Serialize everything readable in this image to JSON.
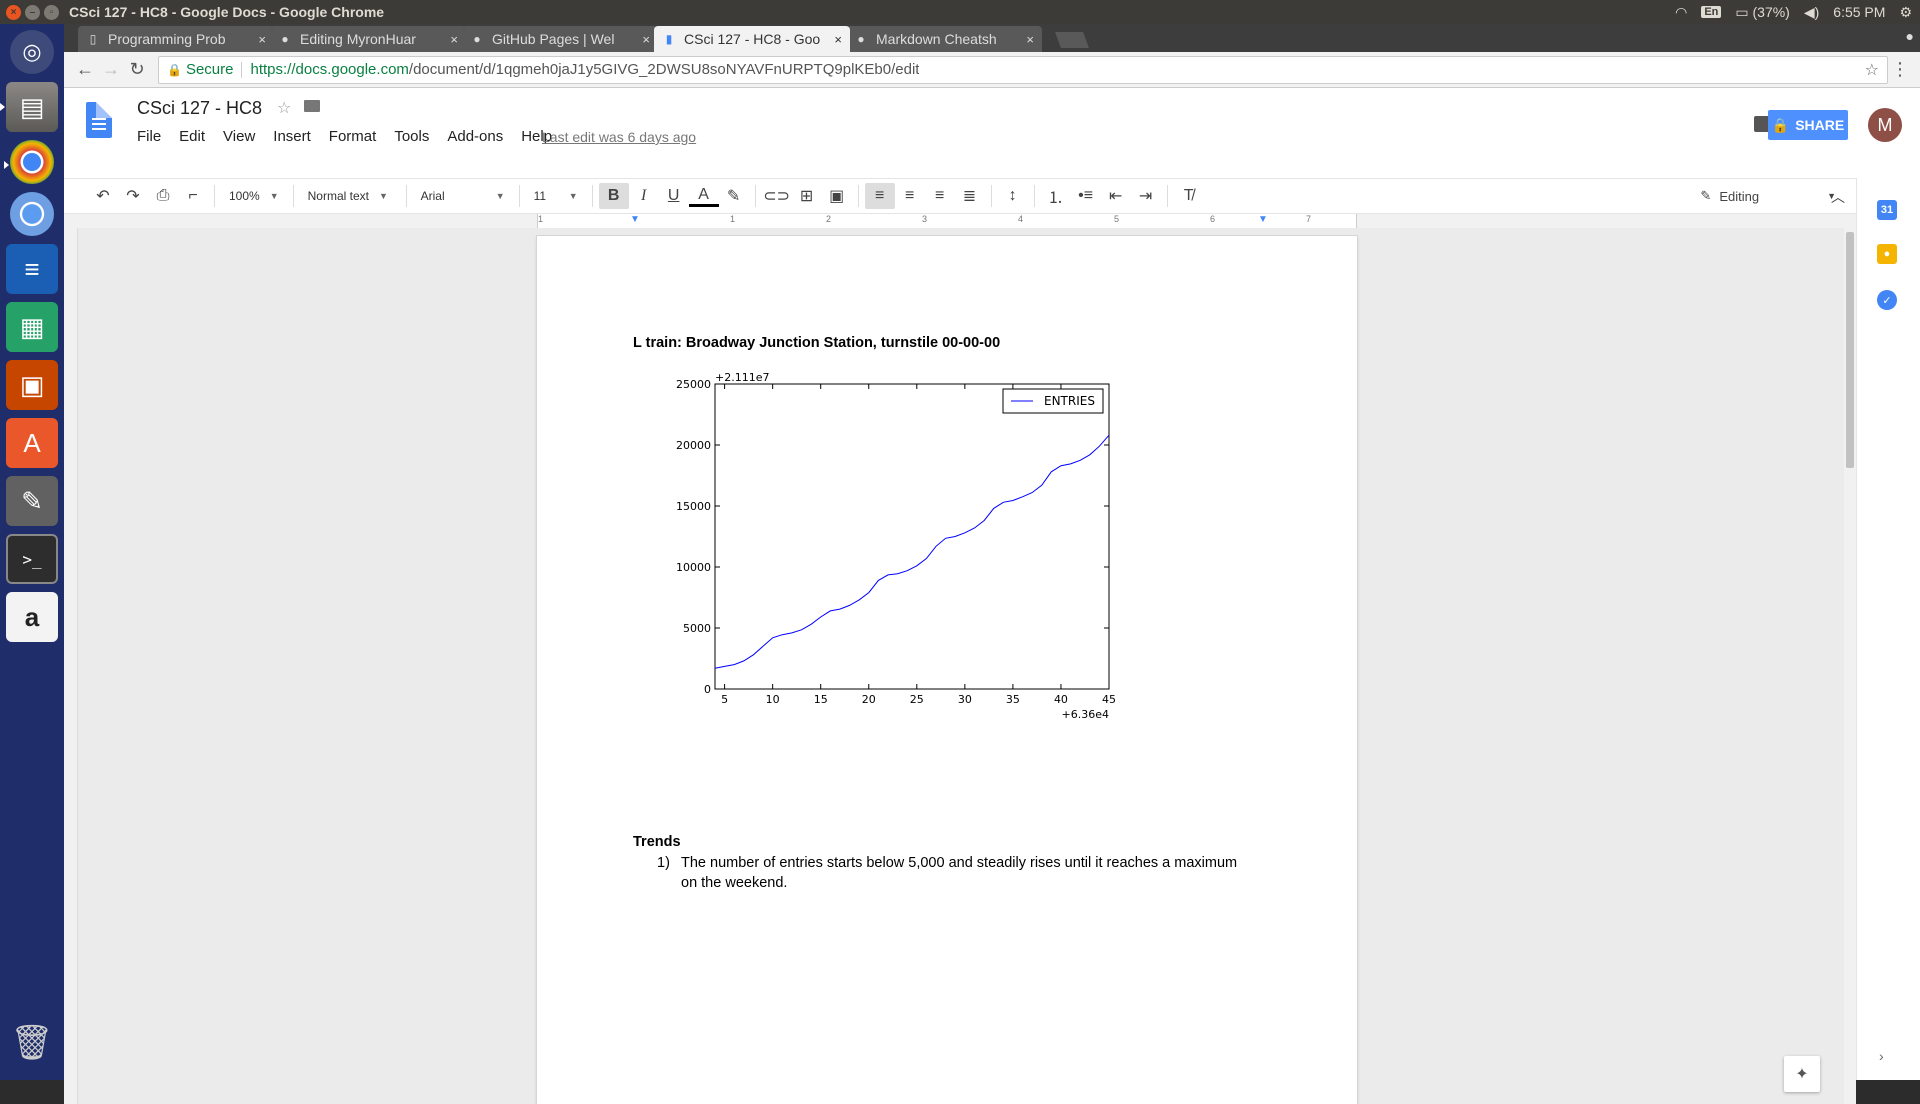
{
  "window": {
    "title": "CSci 127 - HC8 - Google Docs - Google Chrome",
    "tray": {
      "keyboard": "En",
      "battery": "(37%)",
      "time": "6:55 PM"
    }
  },
  "launcher": {
    "items": [
      "ubuntu-dash",
      "files",
      "google-chrome",
      "chromium",
      "libreoffice-writer",
      "libreoffice-calc",
      "libreoffice-impress",
      "software-center",
      "system-settings",
      "terminal",
      "amazon",
      "trash"
    ]
  },
  "tabs": [
    {
      "title": "Programming Prob",
      "icon": "document-icon"
    },
    {
      "title": "Editing MyronHuar",
      "icon": "github-icon"
    },
    {
      "title": "GitHub Pages | Wel",
      "icon": "github-icon"
    },
    {
      "title": "CSci 127 - HC8 - Goo",
      "icon": "docs-icon",
      "active": true
    },
    {
      "title": "Markdown Cheatsh",
      "icon": "github-icon"
    }
  ],
  "omnibox": {
    "secure_label": "Secure",
    "url_scheme_host": "https://docs.google.com",
    "url_path": "/document/d/1qgmeh0jaJ1y5GIVG_2DWSU8soNYAVFnURPTQ9plKEb0/edit"
  },
  "docs": {
    "title": "CSci 127 - HC8",
    "menu": [
      "File",
      "Edit",
      "View",
      "Insert",
      "Format",
      "Tools",
      "Add-ons",
      "Help"
    ],
    "last_edit": "Last edit was 6 days ago",
    "share_label": "SHARE",
    "avatar_letter": "M"
  },
  "toolbar": {
    "zoom": "100%",
    "style": "Normal text",
    "font": "Arial",
    "size": "11",
    "mode": "Editing"
  },
  "ruler": {
    "numbers": [
      "1",
      "1",
      "2",
      "3",
      "4",
      "5",
      "6",
      "7"
    ]
  },
  "document": {
    "heading": "L train: Broadway Junction Station, turnstile 00-00-00",
    "trends_heading": "Trends",
    "list": [
      {
        "num": "1)",
        "text": "The number of entries starts below 5,000 and steadily rises until it reaches a maximum on the weekend."
      }
    ]
  },
  "chart_data": {
    "type": "line",
    "x_offset_label": "+6.36e4",
    "y_offset_label": "+2.111e7",
    "xlim": [
      4,
      45
    ],
    "ylim": [
      0,
      25000
    ],
    "x_ticks": [
      5,
      10,
      15,
      20,
      25,
      30,
      35,
      40,
      45
    ],
    "y_ticks": [
      0,
      5000,
      10000,
      15000,
      20000,
      25000
    ],
    "legend_position": "top-right",
    "color": "#0000ff",
    "series": [
      {
        "name": "ENTRIES",
        "x": [
          4,
          5,
          6,
          7,
          8,
          9,
          10,
          11,
          12,
          13,
          14,
          15,
          16,
          17,
          18,
          19,
          20,
          21,
          22,
          23,
          24,
          25,
          26,
          27,
          28,
          29,
          30,
          31,
          32,
          33,
          34,
          35,
          36,
          37,
          38,
          39,
          40,
          41,
          42,
          43,
          44,
          45
        ],
        "values": [
          1700,
          1850,
          2000,
          2300,
          2800,
          3500,
          4200,
          4450,
          4600,
          4850,
          5300,
          5900,
          6400,
          6550,
          6850,
          7300,
          7900,
          8900,
          9350,
          9450,
          9700,
          10100,
          10700,
          11700,
          12350,
          12500,
          12800,
          13200,
          13800,
          14800,
          15300,
          15450,
          15750,
          16100,
          16700,
          17800,
          18300,
          18450,
          18750,
          19200,
          19900,
          20800
        ]
      }
    ]
  }
}
